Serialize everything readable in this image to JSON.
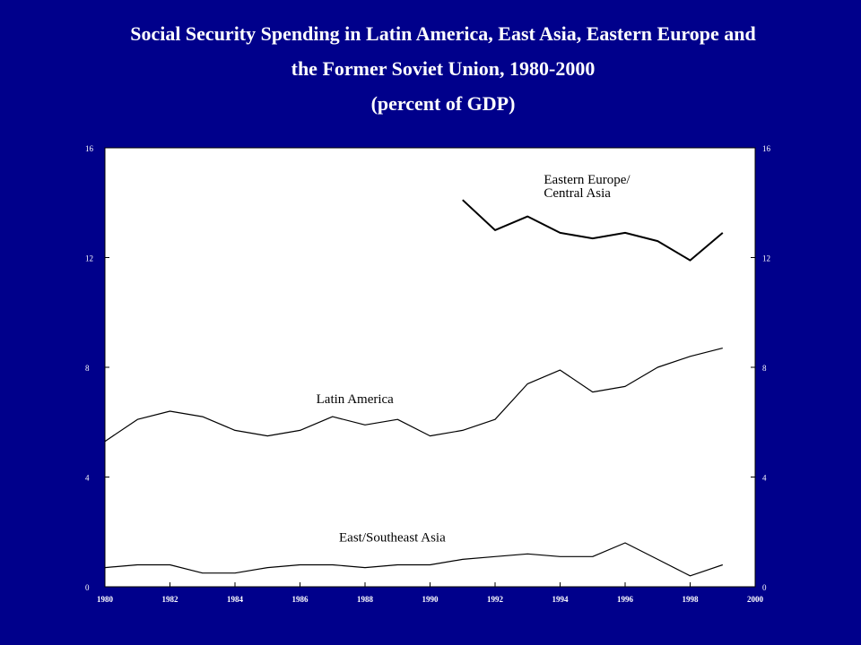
{
  "slide": {
    "title_line1": "Social Security Spending in Latin America, East Asia, Eastern Europe and",
    "title_line2": "the Former Soviet Union, 1980-2000",
    "title_line3": "(percent of GDP)"
  },
  "colors": {
    "background": "#00008B",
    "plot_area": "#ffffff",
    "line": "#000000",
    "text": "#ffffff"
  },
  "chart_data": {
    "type": "line",
    "title": "",
    "xlabel": "",
    "ylabel": "",
    "xlim": [
      1980,
      2000
    ],
    "ylim": [
      0,
      16
    ],
    "x_ticks": [
      1980,
      1982,
      1984,
      1986,
      1988,
      1990,
      1992,
      1994,
      1996,
      1998,
      2000
    ],
    "y_ticks_left": [
      0,
      4,
      8,
      12,
      16
    ],
    "y_ticks_right": [
      0,
      4,
      8,
      12,
      16
    ],
    "secondary_axis": true,
    "grid": false,
    "series": [
      {
        "name": "Eastern Europe/ Central Asia",
        "label_lines": [
          "Eastern Europe/",
          "Central Asia"
        ],
        "x": [
          1991,
          1992,
          1993,
          1994,
          1995,
          1996,
          1997,
          1998,
          1999
        ],
        "y": [
          14.1,
          13.0,
          13.5,
          12.9,
          12.7,
          12.9,
          12.6,
          11.9,
          12.9
        ]
      },
      {
        "name": "Latin America",
        "label_lines": [
          "Latin America"
        ],
        "x": [
          1980,
          1981,
          1982,
          1983,
          1984,
          1985,
          1986,
          1987,
          1988,
          1989,
          1990,
          1991,
          1992,
          1993,
          1994,
          1995,
          1996,
          1997,
          1998,
          1999
        ],
        "y": [
          5.3,
          6.1,
          6.4,
          6.2,
          5.7,
          5.5,
          5.7,
          6.2,
          5.9,
          6.1,
          5.5,
          5.7,
          6.1,
          7.4,
          7.9,
          7.1,
          7.3,
          8.0,
          8.4,
          8.7
        ]
      },
      {
        "name": "East/Southeast Asia",
        "label_lines": [
          "East/Southeast Asia"
        ],
        "x": [
          1980,
          1981,
          1982,
          1983,
          1984,
          1985,
          1986,
          1987,
          1988,
          1989,
          1990,
          1991,
          1992,
          1993,
          1994,
          1995,
          1996,
          1997,
          1998,
          1999
        ],
        "y": [
          0.7,
          0.8,
          0.8,
          0.5,
          0.5,
          0.7,
          0.8,
          0.8,
          0.7,
          0.8,
          0.8,
          1.0,
          1.1,
          1.2,
          1.1,
          1.1,
          1.6,
          1.0,
          0.4,
          0.8
        ]
      }
    ]
  }
}
